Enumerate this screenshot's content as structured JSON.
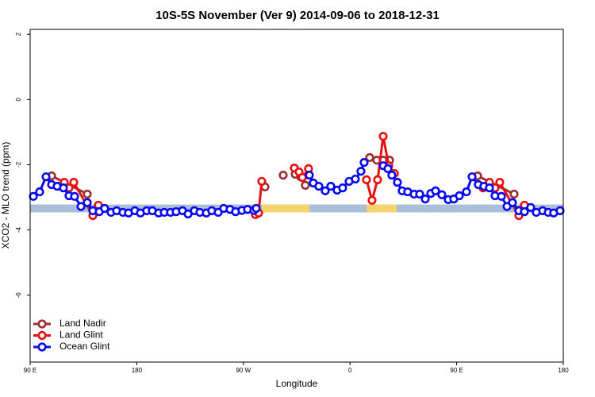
{
  "chart_data": {
    "type": "line",
    "title": "10S-5S November (Ver 9)   2014-09-06 to 2018-12-31",
    "x_label": "Longitude",
    "y_label": "XCO2 - MLO trend (ppm)",
    "xlim": [
      90,
      540
    ],
    "ylim": [
      -8.05,
      2.15
    ],
    "xticks": [
      {
        "value": 90,
        "label": "90 E"
      },
      180,
      {
        "value": 270,
        "label": "90 W"
      },
      {
        "value": 360,
        "label": "0"
      },
      {
        "value": 450,
        "label": "90 E"
      },
      {
        "value": 540,
        "label": "180"
      }
    ],
    "yticks": [
      -6,
      -4,
      -2,
      0,
      2
    ],
    "legend": "bottom-left",
    "band": {
      "range": [
        -3.46,
        -3.22
      ],
      "color": "#a9bedb",
      "segments": [
        [
          285.5,
          325.7
        ],
        [
          373.9,
          399.4
        ]
      ],
      "segment_color": "#f7d36e"
    },
    "series": [
      {
        "name": "Land Nadir",
        "color": "#9b3030",
        "x": [
          108.1,
          138.2,
          200,
          288.2,
          296,
          303.6,
          308,
          313.7,
          318.3,
          322.3,
          350,
          376.6,
          382.6,
          388.0,
          393.4,
          430,
          467.7,
          498.5
        ],
        "values": [
          -2.34,
          -2.9,
          null,
          -2.68,
          null,
          -2.32,
          null,
          -2.29,
          -2.37,
          -2.63,
          null,
          -1.78,
          -1.86,
          -1.86,
          -1.86,
          null,
          -2.34,
          -2.9
        ]
      },
      {
        "name": "Land Glint",
        "color": "#e81010",
        "x": [
          113.4,
          118.8,
          122.8,
          126.8,
          142.9,
          147.6,
          200,
          280.2,
          282.8,
          285.5,
          300,
          313.0,
          317.0,
          319.7,
          325.0,
          350,
          373.9,
          378.6,
          383.3,
          388.0,
          392.7,
          397.4,
          430,
          472.3,
          477.7,
          482.4,
          486.4,
          502.5,
          507.2
        ],
        "values": [
          -2.66,
          -2.54,
          -2.71,
          -2.54,
          -3.56,
          -3.24,
          null,
          -3.53,
          -3.48,
          -2.51,
          null,
          -2.1,
          -2.22,
          -2.39,
          -2.12,
          null,
          -2.46,
          -3.09,
          -2.46,
          -1.13,
          -2.03,
          -2.27,
          null,
          -2.71,
          -2.54,
          -2.71,
          -2.54,
          -3.56,
          -3.24
        ]
      },
      {
        "name": "Ocean Glint",
        "color": "#0a0af0",
        "x": [
          92.7,
          98.0,
          103.4,
          108.1,
          112.8,
          118.1,
          122.8,
          127.5,
          132.9,
          138.2,
          142.9,
          148.3,
          152.9,
          158.3,
          163.0,
          168.3,
          173.0,
          178.4,
          183.1,
          188.4,
          193.1,
          198.5,
          203.2,
          208.5,
          213.2,
          218.6,
          223.3,
          228.6,
          233.3,
          238.7,
          243.3,
          248.7,
          253.4,
          258.7,
          263.4,
          268.8,
          273.5,
          278.8,
          280.8,
          303,
          325.7,
          329.0,
          333.7,
          339.1,
          343.8,
          349.1,
          353.8,
          359.2,
          364.5,
          369.2,
          371.9,
          380,
          388.0,
          392.0,
          395.3,
          400.0,
          404.0,
          408.7,
          414.1,
          418.8,
          423.5,
          428.2,
          432.2,
          437.5,
          442.9,
          447.6,
          452.3,
          458.3,
          463.0,
          468.3,
          473.0,
          477.7,
          482.4,
          487.8,
          492.5,
          497.1,
          502.5,
          507.2,
          512.5,
          517.2,
          522.6,
          527.3,
          531.9,
          537.3
        ],
        "values": [
          -2.97,
          -2.83,
          -2.37,
          -2.61,
          -2.66,
          -2.71,
          -2.95,
          -2.97,
          -3.28,
          -3.16,
          -3.41,
          -3.44,
          -3.34,
          -3.46,
          -3.41,
          -3.46,
          -3.48,
          -3.41,
          -3.48,
          -3.41,
          -3.41,
          -3.48,
          -3.46,
          -3.46,
          -3.44,
          -3.41,
          -3.51,
          -3.41,
          -3.46,
          -3.48,
          -3.41,
          -3.46,
          -3.34,
          -3.37,
          -3.44,
          -3.4,
          -3.37,
          -3.4,
          -3.34,
          null,
          -2.32,
          -2.56,
          -2.66,
          -2.8,
          -2.66,
          -2.78,
          -2.71,
          -2.51,
          -2.44,
          -2.2,
          -1.93,
          null,
          -2.03,
          -2.12,
          -2.32,
          -2.54,
          -2.8,
          -2.83,
          -2.9,
          -2.9,
          -3.05,
          -2.88,
          -2.8,
          -2.92,
          -3.07,
          -3.05,
          -2.95,
          -2.83,
          -2.37,
          -2.61,
          -2.66,
          -2.71,
          -2.95,
          -2.97,
          -3.28,
          -3.16,
          -3.41,
          -3.44,
          -3.31,
          -3.46,
          -3.41,
          -3.46,
          -3.48,
          -3.41
        ]
      }
    ]
  }
}
